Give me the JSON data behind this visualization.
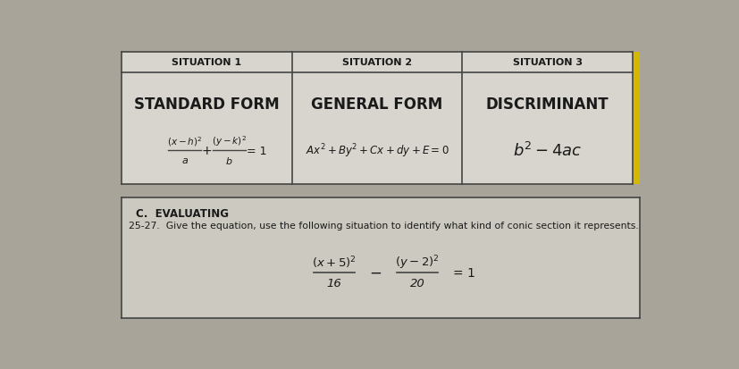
{
  "outer_bg": "#a8a49a",
  "top_panel_bg": "#d8d5ce",
  "bot_panel_bg": "#ccc9c0",
  "accent_color": "#d4b800",
  "text_color": "#1a1a1a",
  "line_color": "#444444",
  "situation1_header": "SITUATION 1",
  "situation2_header": "SITUATION 2",
  "situation3_header": "SITUATION 3",
  "sit1_title": "STANDARD FORM",
  "sit2_title": "GENERAL FORM",
  "sit3_title": "DISCRIMINANT",
  "eval_header": "C.  EVALUATING",
  "eval_instruction": "25-27.  Give the equation, use the following situation to identify what kind of conic section it represents."
}
